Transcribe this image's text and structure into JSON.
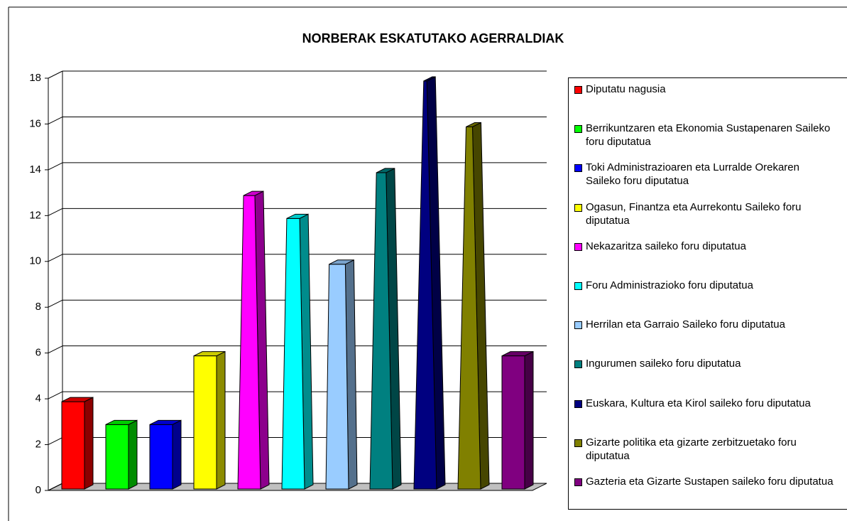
{
  "chart_data": {
    "type": "bar3d",
    "title": "NORBERAK ESKATUTAKO AGERRALDIAK",
    "categories": [
      "Diputatu nagusia",
      "Berrikuntzaren eta Ekonomia Sustapenaren Saileko foru diputatua",
      "Toki Administrazioaren eta Lurralde Orekaren Saileko foru diputatua",
      "Ogasun, Finantza eta Aurrekontu Saileko foru diputatua",
      "Nekazaritza saileko foru diputatua",
      "Foru Administrazioko foru diputatua",
      "Herrilan eta Garraio Saileko foru diputatua",
      "Ingurumen saileko foru diputatua",
      "Euskara, Kultura eta Kirol saileko foru diputatua",
      "Gizarte politika eta gizarte zerbitzuetako foru diputatua",
      "Gazteria eta Gizarte Sustapen saileko foru diputatua"
    ],
    "values": [
      4,
      3,
      3,
      6,
      13,
      12,
      10,
      14,
      18,
      16,
      6
    ],
    "colors": [
      "#ff0000",
      "#00ff00",
      "#0000ff",
      "#ffff00",
      "#ff00ff",
      "#00ffff",
      "#99ccff",
      "#008080",
      "#000080",
      "#808000",
      "#800080"
    ],
    "ylim": [
      0,
      18
    ],
    "yticks": [
      0,
      2,
      4,
      6,
      8,
      10,
      12,
      14,
      16,
      18
    ],
    "grid": true
  }
}
